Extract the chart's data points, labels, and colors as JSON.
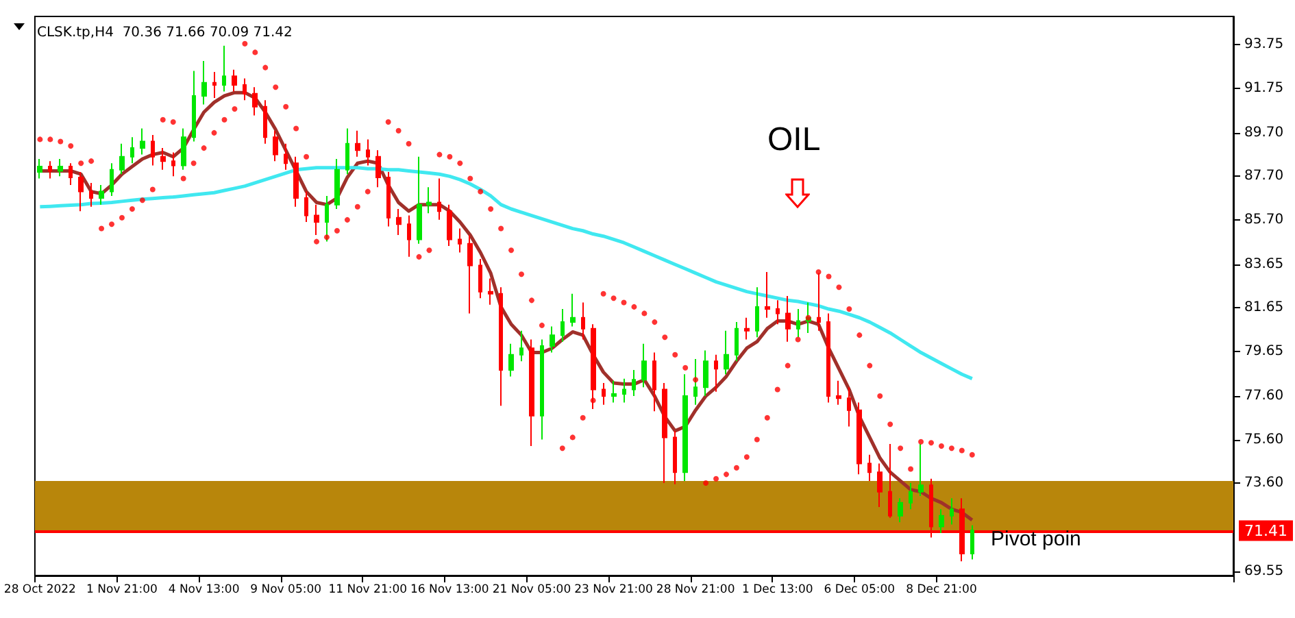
{
  "chart_data": {
    "type": "candlestick",
    "title": "CLSK.tp,H4  70.36 71.66 70.09 71.42",
    "categories": [
      "28 Oct 2022",
      null,
      null,
      null,
      null,
      null,
      null,
      null,
      "1 Nov 21:00",
      null,
      null,
      null,
      null,
      null,
      null,
      null,
      "4 Nov 13:00",
      null,
      null,
      null,
      null,
      null,
      null,
      null,
      "9 Nov 05:00",
      null,
      null,
      null,
      null,
      null,
      null,
      null,
      "11 Nov 21:00",
      null,
      null,
      null,
      null,
      null,
      null,
      null,
      "16 Nov 13:00",
      null,
      null,
      null,
      null,
      null,
      null,
      null,
      "21 Nov 05:00",
      null,
      null,
      null,
      null,
      null,
      null,
      null,
      "23 Nov 21:00",
      null,
      null,
      null,
      null,
      null,
      null,
      null,
      "28 Nov 21:00",
      null,
      null,
      null,
      null,
      null,
      null,
      null,
      "1 Dec 13:00",
      null,
      null,
      null,
      null,
      null,
      null,
      null,
      "6 Dec 05:00",
      null,
      null,
      null,
      null,
      null,
      null,
      null,
      "8 Dec 21:00",
      null,
      null,
      null
    ],
    "ohlc": [
      [
        87.9,
        88.5,
        87.6,
        88.15
      ],
      [
        88.15,
        88.4,
        87.6,
        87.95
      ],
      [
        87.95,
        88.5,
        87.7,
        88.15
      ],
      [
        88.15,
        88.3,
        87.3,
        87.65
      ],
      [
        87.65,
        87.9,
        86.1,
        87.0
      ],
      [
        87.0,
        87.4,
        86.3,
        86.7
      ],
      [
        86.7,
        87.3,
        86.4,
        87.0
      ],
      [
        87.0,
        88.3,
        86.8,
        88.0
      ],
      [
        88.0,
        89.2,
        87.8,
        88.6
      ],
      [
        88.6,
        89.5,
        88.3,
        89.0
      ],
      [
        89.0,
        89.9,
        88.7,
        89.3
      ],
      [
        89.3,
        89.6,
        88.2,
        88.6
      ],
      [
        88.6,
        89.0,
        88.0,
        88.4
      ],
      [
        88.4,
        88.8,
        87.7,
        88.2
      ],
      [
        88.2,
        89.9,
        88.0,
        89.5
      ],
      [
        89.5,
        92.55,
        89.3,
        91.4
      ],
      [
        91.4,
        93.0,
        91.0,
        92.0
      ],
      [
        92.0,
        92.5,
        91.3,
        91.9
      ],
      [
        91.9,
        93.7,
        91.6,
        92.3
      ],
      [
        92.3,
        92.6,
        91.6,
        91.9
      ],
      [
        91.9,
        92.2,
        91.2,
        91.5
      ],
      [
        91.5,
        91.8,
        90.5,
        90.9
      ],
      [
        90.9,
        91.2,
        89.2,
        89.5
      ],
      [
        89.5,
        89.8,
        88.4,
        88.7
      ],
      [
        88.7,
        89.2,
        88.0,
        88.3
      ],
      [
        88.3,
        88.6,
        86.3,
        86.7
      ],
      [
        86.7,
        87.0,
        85.6,
        85.9
      ],
      [
        85.9,
        86.4,
        85.0,
        85.6
      ],
      [
        85.6,
        86.8,
        84.7,
        86.4
      ],
      [
        86.4,
        88.5,
        86.2,
        88.0
      ],
      [
        88.0,
        89.9,
        87.8,
        89.2
      ],
      [
        89.2,
        89.8,
        88.6,
        88.9
      ],
      [
        88.9,
        89.4,
        88.2,
        88.6
      ],
      [
        88.6,
        88.9,
        87.2,
        87.65
      ],
      [
        87.65,
        87.9,
        85.4,
        85.8
      ],
      [
        85.8,
        86.2,
        85.0,
        85.5
      ],
      [
        85.5,
        85.9,
        84.0,
        84.8
      ],
      [
        84.8,
        88.6,
        84.6,
        86.4
      ],
      [
        86.4,
        87.2,
        86.0,
        86.5
      ],
      [
        86.5,
        87.6,
        85.7,
        86.1
      ],
      [
        86.1,
        86.4,
        84.5,
        84.8
      ],
      [
        84.8,
        85.3,
        84.2,
        84.6
      ],
      [
        84.6,
        85.0,
        81.4,
        83.6
      ],
      [
        83.6,
        83.9,
        82.1,
        82.4
      ],
      [
        82.4,
        83.0,
        81.8,
        82.3
      ],
      [
        82.3,
        82.6,
        77.15,
        78.8
      ],
      [
        78.8,
        80.0,
        78.5,
        79.5
      ],
      [
        79.5,
        80.6,
        79.2,
        79.8
      ],
      [
        79.8,
        80.2,
        75.3,
        76.7
      ],
      [
        76.7,
        80.2,
        75.6,
        79.9
      ],
      [
        79.9,
        80.8,
        79.6,
        80.4
      ],
      [
        80.4,
        81.6,
        80.1,
        81.0
      ],
      [
        81.0,
        82.3,
        80.8,
        81.2
      ],
      [
        81.2,
        81.9,
        80.2,
        80.7
      ],
      [
        80.7,
        80.9,
        77.0,
        77.9
      ],
      [
        77.9,
        78.2,
        77.2,
        77.6
      ],
      [
        77.6,
        78.3,
        77.3,
        77.7
      ],
      [
        77.7,
        78.4,
        77.3,
        77.9
      ],
      [
        77.9,
        78.8,
        77.6,
        78.35
      ],
      [
        78.35,
        80.0,
        78.0,
        79.2
      ],
      [
        79.2,
        79.6,
        76.9,
        77.9
      ],
      [
        77.9,
        78.2,
        73.6,
        75.7
      ],
      [
        75.7,
        76.0,
        73.55,
        74.1
      ],
      [
        74.1,
        78.6,
        73.7,
        77.6
      ],
      [
        77.6,
        79.3,
        77.2,
        78.0
      ],
      [
        78.0,
        79.7,
        77.6,
        79.2
      ],
      [
        79.2,
        79.5,
        77.8,
        78.85
      ],
      [
        78.85,
        80.6,
        78.6,
        79.5
      ],
      [
        79.5,
        81.0,
        79.2,
        80.7
      ],
      [
        80.7,
        81.2,
        80.2,
        80.6
      ],
      [
        80.6,
        82.6,
        80.3,
        81.7
      ],
      [
        81.7,
        83.3,
        81.2,
        81.6
      ],
      [
        81.6,
        82.0,
        80.9,
        81.4
      ],
      [
        81.4,
        82.2,
        80.1,
        80.7
      ],
      [
        80.7,
        81.6,
        80.3,
        81.05
      ],
      [
        81.05,
        81.9,
        80.5,
        81.2
      ],
      [
        81.2,
        83.25,
        80.6,
        81.0
      ],
      [
        81.0,
        81.4,
        77.3,
        77.6
      ],
      [
        77.6,
        78.3,
        77.2,
        77.5
      ],
      [
        77.5,
        78.0,
        76.2,
        76.95
      ],
      [
        76.95,
        77.3,
        74.0,
        74.5
      ],
      [
        74.5,
        74.9,
        73.7,
        74.1
      ],
      [
        74.1,
        74.5,
        72.5,
        73.2
      ],
      [
        73.2,
        75.4,
        72.0,
        72.1
      ],
      [
        72.1,
        72.9,
        71.8,
        72.7
      ],
      [
        72.7,
        73.6,
        72.4,
        73.2
      ],
      [
        73.2,
        75.4,
        73.0,
        73.5
      ],
      [
        73.5,
        73.8,
        71.1,
        71.6
      ],
      [
        71.6,
        72.4,
        71.3,
        72.1
      ],
      [
        72.1,
        72.9,
        71.7,
        72.4
      ],
      [
        72.4,
        72.9,
        70.0,
        70.36
      ],
      [
        70.36,
        71.66,
        70.09,
        71.42
      ]
    ],
    "colors": [
      "#00e600",
      "#ff0000",
      "#00e600",
      "#ff0000",
      "#ff0000",
      "#ff0000",
      "#00e600",
      "#00e600",
      "#00e600",
      "#00e600",
      "#00e600",
      "#ff0000",
      "#ff0000",
      "#ff0000",
      "#00e600",
      "#00e600",
      "#00e600",
      "#ff0000",
      "#00e600",
      "#ff0000",
      "#ff0000",
      "#ff0000",
      "#ff0000",
      "#ff0000",
      "#ff0000",
      "#ff0000",
      "#ff0000",
      "#ff0000",
      "#00e600",
      "#00e600",
      "#00e600",
      "#ff0000",
      "#ff0000",
      "#ff0000",
      "#ff0000",
      "#ff0000",
      "#ff0000",
      "#00e600",
      "#00e600",
      "#ff0000",
      "#ff0000",
      "#ff0000",
      "#ff0000",
      "#ff0000",
      "#ff0000",
      "#ff0000",
      "#00e600",
      "#00e600",
      "#ff0000",
      "#00e600",
      "#00e600",
      "#00e600",
      "#00e600",
      "#ff0000",
      "#ff0000",
      "#ff0000",
      "#00e600",
      "#00e600",
      "#00e600",
      "#00e600",
      "#ff0000",
      "#ff0000",
      "#ff0000",
      "#00e600",
      "#00e600",
      "#00e600",
      "#ff0000",
      "#00e600",
      "#00e600",
      "#ff0000",
      "#00e600",
      "#ff0000",
      "#ff0000",
      "#ff0000",
      "#00e600",
      "#00e600",
      "#ff0000",
      "#ff0000",
      "#ff0000",
      "#ff0000",
      "#ff0000",
      "#ff0000",
      "#ff0000",
      "#ff0000",
      "#00e600",
      "#00e600",
      "#00e600",
      "#ff0000",
      "#00e600",
      "#00e600",
      "#ff0000",
      "#00e600"
    ],
    "series": [
      {
        "type": "line",
        "color": "#a0302a",
        "values": [
          87.95,
          87.95,
          87.95,
          87.95,
          87.8,
          87.0,
          86.9,
          87.3,
          87.8,
          88.15,
          88.5,
          88.7,
          88.8,
          88.6,
          89.0,
          89.85,
          90.65,
          91.1,
          91.4,
          91.55,
          91.55,
          91.3,
          90.65,
          89.85,
          88.9,
          87.95,
          87.0,
          86.5,
          86.4,
          86.7,
          87.65,
          88.3,
          88.4,
          88.3,
          87.3,
          86.5,
          86.1,
          86.4,
          86.4,
          86.4,
          86.1,
          85.6,
          85.0,
          84.2,
          83.25,
          81.7,
          80.9,
          80.4,
          79.6,
          79.6,
          79.8,
          80.2,
          80.55,
          80.4,
          79.5,
          78.7,
          78.2,
          78.15,
          78.15,
          78.35,
          77.6,
          76.65,
          76.0,
          76.2,
          76.95,
          77.6,
          78.0,
          78.5,
          79.2,
          79.8,
          80.1,
          80.7,
          81.05,
          81.05,
          80.9,
          81.05,
          80.9,
          79.8,
          78.85,
          77.9,
          76.65,
          75.7,
          74.75,
          74.1,
          73.7,
          73.3,
          73.2,
          72.9,
          72.7,
          72.4,
          72.25,
          71.9
        ]
      },
      {
        "type": "line",
        "color": "#40e8f0",
        "values": [
          86.3,
          86.32,
          86.35,
          86.37,
          86.4,
          86.45,
          86.47,
          86.5,
          86.55,
          86.6,
          86.65,
          86.68,
          86.72,
          86.75,
          86.8,
          86.85,
          86.9,
          86.95,
          87.05,
          87.15,
          87.25,
          87.4,
          87.55,
          87.7,
          87.85,
          88.0,
          88.05,
          88.1,
          88.1,
          88.1,
          88.1,
          88.1,
          88.05,
          88.05,
          88.0,
          88.0,
          87.95,
          87.9,
          87.85,
          87.8,
          87.7,
          87.55,
          87.35,
          87.1,
          86.8,
          86.4,
          86.2,
          86.05,
          85.9,
          85.75,
          85.6,
          85.45,
          85.3,
          85.2,
          85.05,
          84.95,
          84.8,
          84.65,
          84.45,
          84.25,
          84.05,
          83.85,
          83.65,
          83.45,
          83.25,
          83.05,
          82.85,
          82.7,
          82.55,
          82.4,
          82.3,
          82.2,
          82.1,
          82.0,
          81.95,
          81.85,
          81.75,
          81.6,
          81.5,
          81.35,
          81.2,
          81.0,
          80.75,
          80.5,
          80.2,
          79.9,
          79.6,
          79.35,
          79.1,
          78.85,
          78.6,
          78.4
        ]
      },
      {
        "type": "scatter",
        "color": "#ff0000",
        "marker": "circle",
        "values": [
          89.4,
          89.4,
          89.3,
          89.1,
          88.3,
          88.4,
          85.3,
          85.5,
          85.8,
          86.2,
          86.6,
          87.1,
          90.3,
          90.2,
          87.6,
          88.3,
          89.0,
          89.7,
          90.3,
          90.8,
          93.8,
          93.4,
          92.7,
          91.8,
          90.9,
          89.9,
          88.6,
          84.7,
          84.9,
          85.2,
          85.7,
          86.3,
          87.0,
          null,
          90.2,
          89.8,
          89.2,
          84.0,
          84.3,
          88.7,
          88.6,
          88.3,
          87.6,
          87.0,
          86.2,
          85.3,
          84.3,
          83.2,
          82.0,
          80.85,
          null,
          75.2,
          75.7,
          76.6,
          77.4,
          82.3,
          82.1,
          81.9,
          81.7,
          81.4,
          81.0,
          80.3,
          79.5,
          78.9,
          78.35,
          73.6,
          73.8,
          74.0,
          74.3,
          74.8,
          75.6,
          76.6,
          77.9,
          79.0,
          80.2,
          81.2,
          83.3,
          83.1,
          82.6,
          81.6,
          80.4,
          79.0,
          77.6,
          76.3,
          75.2,
          74.25,
          75.5,
          75.45,
          75.3,
          75.2,
          75.1,
          74.9
        ]
      }
    ],
    "ylim": [
      69.35,
      95.05
    ],
    "yticks": [
      {
        "value": 93.75,
        "label": "93.75"
      },
      {
        "value": 91.75,
        "label": "91.75"
      },
      {
        "value": 89.7,
        "label": "89.70"
      },
      {
        "value": 87.7,
        "label": "87.70"
      },
      {
        "value": 85.7,
        "label": "85.70"
      },
      {
        "value": 83.65,
        "label": "83.65"
      },
      {
        "value": 81.65,
        "label": "81.65"
      },
      {
        "value": 79.65,
        "label": "79.65"
      },
      {
        "value": 77.6,
        "label": "77.60"
      },
      {
        "value": 75.6,
        "label": "75.60"
      },
      {
        "value": 73.6,
        "label": "73.60"
      },
      {
        "value": 69.55,
        "label": "69.55"
      }
    ],
    "ref_lines": [
      {
        "axis": "y",
        "value": 71.41,
        "label": "71.41",
        "color": "#ff0000"
      }
    ],
    "bands": [
      {
        "axis": "y",
        "from": 71.41,
        "to": 73.7,
        "color": "#b8860b"
      }
    ],
    "annotations": [
      "OIL",
      "Pivot poin"
    ],
    "grid": false
  }
}
